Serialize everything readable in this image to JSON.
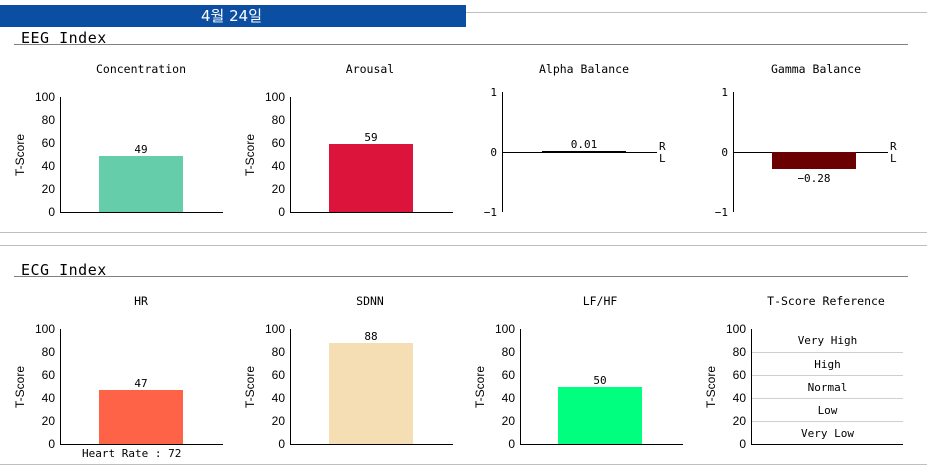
{
  "header": {
    "date": "4월 24일"
  },
  "eeg": {
    "section_title": "EEG Index",
    "concentration": {
      "title": "Concentration",
      "ylabel": "T-Score",
      "value": 49,
      "value_label": "49",
      "color": "#66cdaa",
      "yticks": [
        "100",
        "80",
        "60",
        "40",
        "20",
        "0"
      ]
    },
    "arousal": {
      "title": "Arousal",
      "ylabel": "T-Score",
      "value": 59,
      "value_label": "59",
      "color": "#dc143c",
      "yticks": [
        "100",
        "80",
        "60",
        "40",
        "20",
        "0"
      ]
    },
    "alpha_balance": {
      "title": "Alpha Balance",
      "value": 0.01,
      "value_label": "0.01",
      "color": "#000000",
      "yticks": [
        "1",
        "0",
        "-1"
      ],
      "right_label": "R",
      "left_label": "L"
    },
    "gamma_balance": {
      "title": "Gamma Balance",
      "value": -0.28,
      "value_label": "-0.28",
      "color": "#6b0000",
      "yticks": [
        "1",
        "0",
        "-1"
      ],
      "right_label": "R",
      "left_label": "L"
    }
  },
  "ecg": {
    "section_title": "ECG Index",
    "hr": {
      "title": "HR",
      "ylabel": "T-Score",
      "value": 47,
      "value_label": "47",
      "color": "#ff6347",
      "yticks": [
        "100",
        "80",
        "60",
        "40",
        "20",
        "0"
      ],
      "footnote": "Heart Rate : 72"
    },
    "sdnn": {
      "title": "SDNN",
      "ylabel": "T-Score",
      "value": 88,
      "value_label": "88",
      "color": "#f5deb3",
      "yticks": [
        "100",
        "80",
        "60",
        "40",
        "20",
        "0"
      ]
    },
    "lfhf": {
      "title": "LF/HF",
      "ylabel": "T-Score",
      "value": 50,
      "value_label": "50",
      "color": "#00ff7f",
      "yticks": [
        "100",
        "80",
        "60",
        "40",
        "20",
        "0"
      ]
    },
    "reference": {
      "title": "T-Score Reference",
      "ylabel": "T-Score",
      "yticks": [
        "100",
        "80",
        "60",
        "40",
        "20",
        "0"
      ],
      "levels": [
        "Very High",
        "High",
        "Normal",
        "Low",
        "Very Low"
      ]
    }
  },
  "chart_data": [
    {
      "type": "bar",
      "title": "Concentration",
      "ylabel": "T-Score",
      "categories": [
        ""
      ],
      "values": [
        49
      ],
      "ylim": [
        0,
        100
      ]
    },
    {
      "type": "bar",
      "title": "Arousal",
      "ylabel": "T-Score",
      "categories": [
        ""
      ],
      "values": [
        59
      ],
      "ylim": [
        0,
        100
      ]
    },
    {
      "type": "bar",
      "title": "Alpha Balance",
      "categories": [
        ""
      ],
      "values": [
        0.01
      ],
      "ylim": [
        -1,
        1
      ]
    },
    {
      "type": "bar",
      "title": "Gamma Balance",
      "categories": [
        ""
      ],
      "values": [
        -0.28
      ],
      "ylim": [
        -1,
        1
      ]
    },
    {
      "type": "bar",
      "title": "HR",
      "ylabel": "T-Score",
      "categories": [
        ""
      ],
      "values": [
        47
      ],
      "ylim": [
        0,
        100
      ]
    },
    {
      "type": "bar",
      "title": "SDNN",
      "ylabel": "T-Score",
      "categories": [
        ""
      ],
      "values": [
        88
      ],
      "ylim": [
        0,
        100
      ]
    },
    {
      "type": "bar",
      "title": "LF/HF",
      "ylabel": "T-Score",
      "categories": [
        ""
      ],
      "values": [
        50
      ],
      "ylim": [
        0,
        100
      ]
    },
    {
      "type": "table",
      "title": "T-Score Reference",
      "ylabel": "T-Score",
      "rows": [
        "Very High",
        "High",
        "Normal",
        "Low",
        "Very Low"
      ],
      "ylim": [
        0,
        100
      ]
    }
  ]
}
